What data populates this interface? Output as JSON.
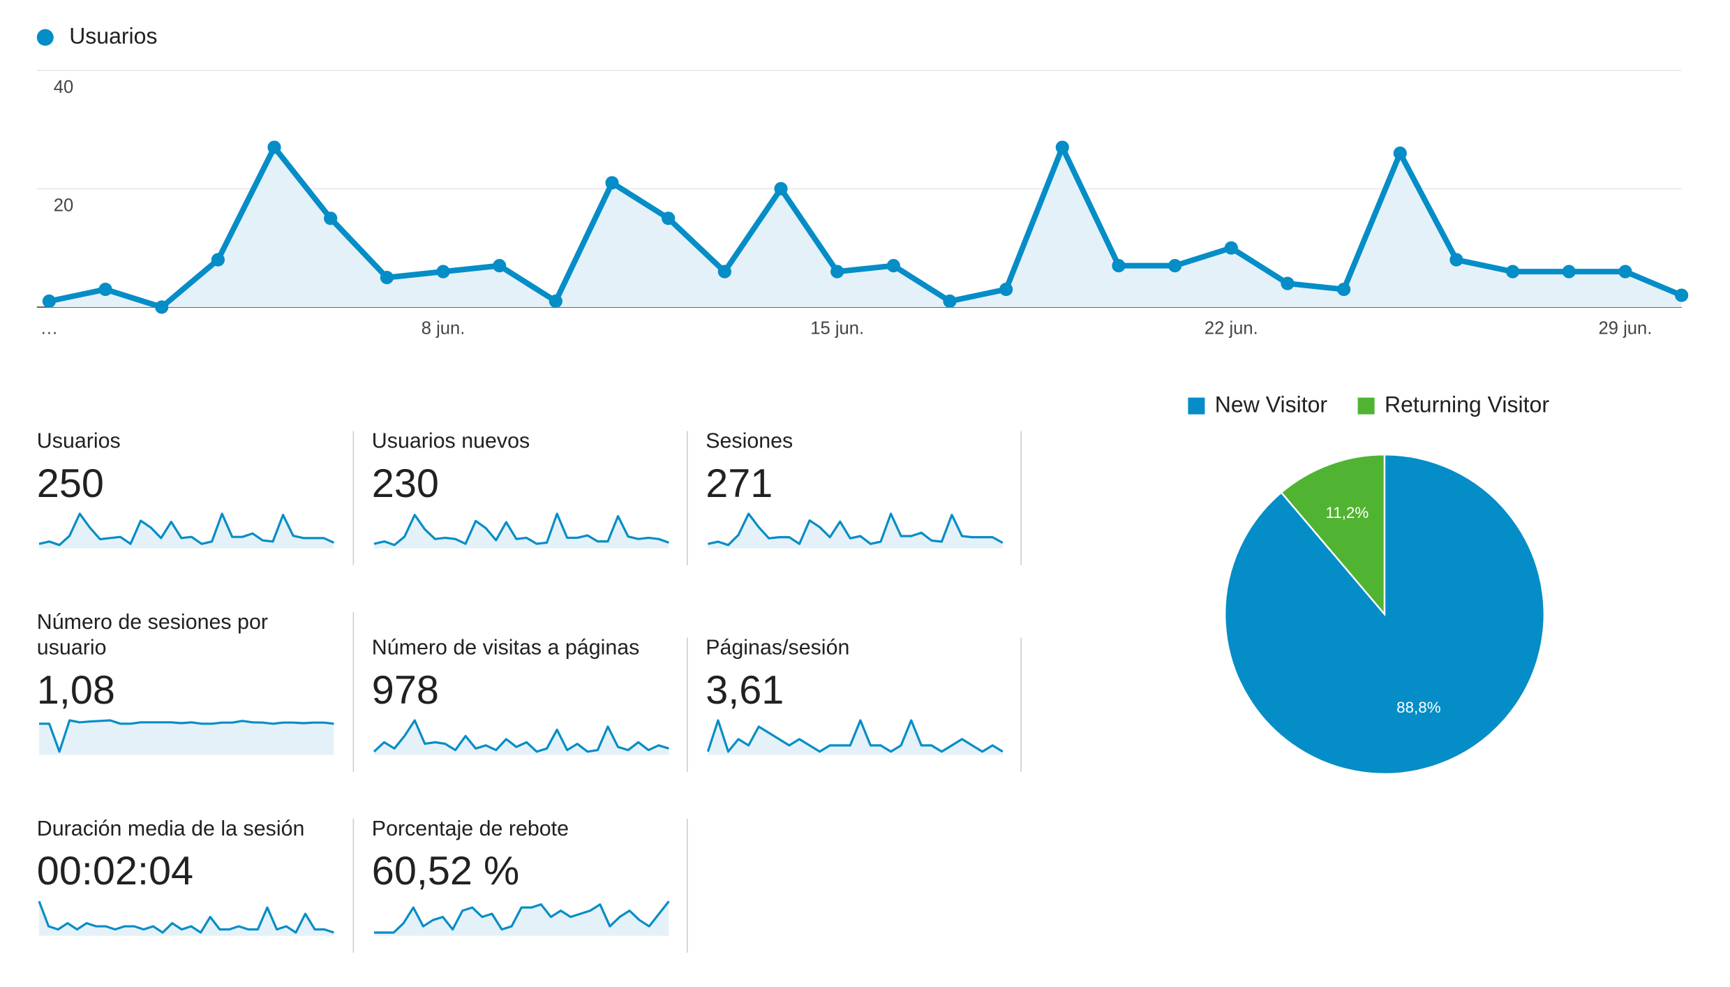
{
  "legend": {
    "label": "Usuarios",
    "color": "#058dc7"
  },
  "chart_data": {
    "type": "area",
    "series": [
      {
        "name": "Usuarios",
        "values": [
          1,
          3,
          0,
          8,
          27,
          15,
          5,
          6,
          7,
          1,
          21,
          15,
          6,
          20,
          6,
          7,
          1,
          3,
          27,
          7,
          7,
          10,
          4,
          3,
          26,
          8,
          6,
          6,
          6,
          2
        ]
      }
    ],
    "y_ticks": [
      "20",
      "40"
    ],
    "ylim": [
      0,
      40
    ],
    "x_tick_labels": [
      {
        "index": 0,
        "label": "…"
      },
      {
        "index": 7,
        "label": "8 jun."
      },
      {
        "index": 14,
        "label": "15 jun."
      },
      {
        "index": 21,
        "label": "22 jun."
      },
      {
        "index": 28,
        "label": "29 jun."
      }
    ],
    "color": "#058dc7",
    "fill_color": "#e5f1f8",
    "grid": true
  },
  "metrics": [
    {
      "key": "usuarios",
      "label": "Usuarios",
      "value": "250",
      "spark": [
        1,
        3,
        0,
        8,
        27,
        15,
        5,
        6,
        7,
        1,
        21,
        15,
        6,
        20,
        6,
        7,
        1,
        3,
        27,
        7,
        7,
        10,
        4,
        3,
        26,
        8,
        6,
        6,
        6,
        2
      ]
    },
    {
      "key": "usuarios-nuevos",
      "label": "Usuarios nuevos",
      "value": "230",
      "spark": [
        1,
        3,
        0,
        7,
        25,
        13,
        5,
        6,
        5,
        1,
        20,
        14,
        4,
        19,
        5,
        6,
        1,
        2,
        26,
        6,
        6,
        8,
        3,
        3,
        24,
        7,
        5,
        6,
        5,
        2
      ]
    },
    {
      "key": "sesiones",
      "label": "Sesiones",
      "value": "271",
      "spark": [
        1,
        3,
        0,
        9,
        28,
        16,
        6,
        7,
        7,
        1,
        22,
        16,
        7,
        21,
        6,
        8,
        1,
        3,
        28,
        8,
        8,
        11,
        4,
        3,
        27,
        8,
        7,
        7,
        7,
        2
      ]
    },
    {
      "key": "sesiones-por-usuario",
      "label": "Número de sesiones por usuario",
      "value": "1,08",
      "spark": [
        1.0,
        1.0,
        0.0,
        1.12,
        1.05,
        1.08,
        1.1,
        1.12,
        1.0,
        1.0,
        1.05,
        1.05,
        1.05,
        1.05,
        1.02,
        1.05,
        1.0,
        1.0,
        1.04,
        1.04,
        1.1,
        1.05,
        1.04,
        1.0,
        1.04,
        1.04,
        1.02,
        1.04,
        1.04,
        1.0
      ]
    },
    {
      "key": "visitas-paginas",
      "label": "Número de visitas a páginas",
      "value": "978",
      "spark": [
        2,
        8,
        4,
        12,
        22,
        7,
        8,
        7,
        3,
        12,
        4,
        6,
        3,
        10,
        5,
        8,
        2,
        4,
        16,
        3,
        7,
        2,
        3,
        18,
        5,
        3,
        8,
        3,
        6,
        4
      ]
    },
    {
      "key": "paginas-sesion",
      "label": "Páginas/sesión",
      "value": "3,61",
      "spark": [
        1,
        6,
        1,
        3,
        2,
        5,
        4,
        3,
        2,
        3,
        2,
        1,
        2,
        2,
        2,
        6,
        2,
        2,
        1,
        2,
        6,
        2,
        2,
        1,
        2,
        3,
        2,
        1,
        2,
        1
      ]
    },
    {
      "key": "duracion-media",
      "label": "Duración media de la sesión",
      "value": "00:02:04",
      "spark": [
        12,
        4,
        3,
        5,
        3,
        5,
        4,
        4,
        3,
        4,
        4,
        3,
        4,
        2,
        5,
        3,
        4,
        2,
        7,
        3,
        3,
        4,
        3,
        3,
        10,
        3,
        4,
        2,
        8,
        3,
        3,
        2
      ]
    },
    {
      "key": "porcentaje-rebote",
      "label": "Porcentaje de rebote",
      "value": "60,52 %",
      "spark": [
        2,
        2,
        2,
        5,
        10,
        4,
        6,
        7,
        3,
        9,
        10,
        7,
        8,
        3,
        4,
        10,
        10,
        11,
        7,
        9,
        7,
        8,
        9,
        11,
        4,
        7,
        9,
        6,
        4,
        8,
        12
      ]
    }
  ],
  "pie": {
    "chart_data": {
      "type": "pie",
      "slices": [
        {
          "label": "New Visitor",
          "value": 88.8,
          "text": "88,8%",
          "color": "#058dc7"
        },
        {
          "label": "Returning Visitor",
          "value": 11.2,
          "text": "11,2%",
          "color": "#50b432"
        }
      ]
    }
  }
}
